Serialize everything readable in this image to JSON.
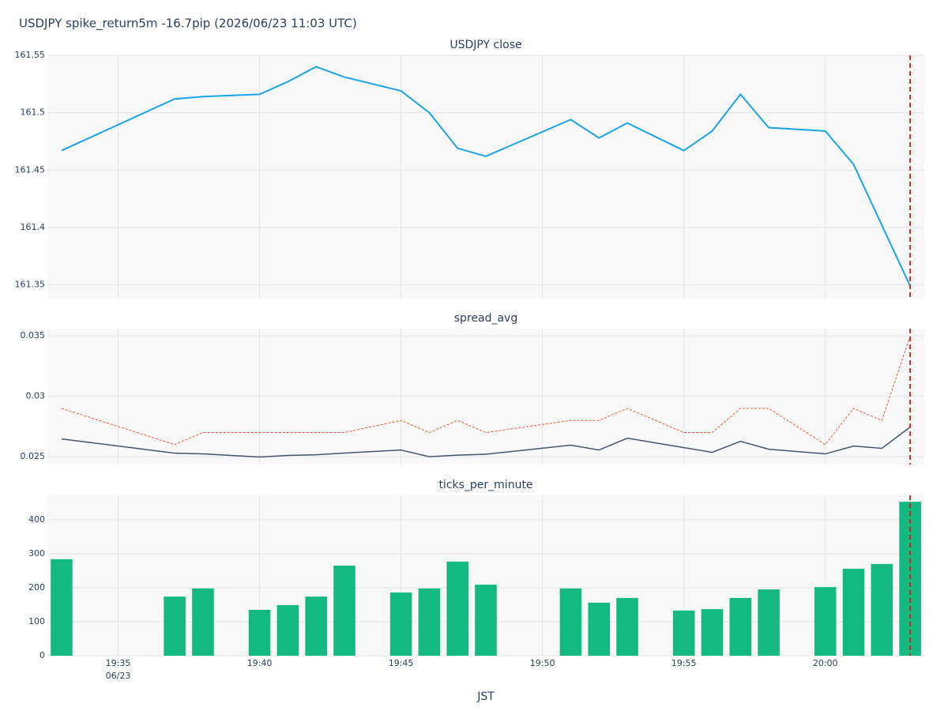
{
  "title": "USDJPY spike_return5m -16.7pip (2026/06/23 11:03 UTC)",
  "event_x": "20:03",
  "chart_data": [
    {
      "type": "line",
      "title": "USDJPY close",
      "x": [
        "19:33",
        "19:37",
        "19:38",
        "19:40",
        "19:41",
        "19:42",
        "19:43",
        "19:45",
        "19:46",
        "19:47",
        "19:48",
        "19:51",
        "19:52",
        "19:53",
        "19:55",
        "19:56",
        "19:57",
        "19:58",
        "20:00",
        "20:01",
        "20:02",
        "20:03"
      ],
      "values": [
        161.467,
        161.512,
        161.514,
        161.516,
        161.527,
        161.54,
        161.531,
        161.519,
        161.5,
        161.469,
        161.462,
        161.494,
        161.478,
        161.491,
        161.467,
        161.484,
        161.516,
        161.487,
        161.484,
        161.455,
        161.402,
        161.349
      ],
      "color": "#1ba3e3",
      "ylim": [
        161.338,
        161.55
      ],
      "yticks": [
        161.35,
        161.4,
        161.45,
        161.5,
        161.55
      ],
      "grid": true
    },
    {
      "type": "line",
      "title": "spread_avg",
      "x": [
        "19:33",
        "19:37",
        "19:38",
        "19:40",
        "19:41",
        "19:42",
        "19:43",
        "19:45",
        "19:46",
        "19:47",
        "19:48",
        "19:51",
        "19:52",
        "19:53",
        "19:55",
        "19:56",
        "19:57",
        "19:58",
        "20:00",
        "20:01",
        "20:02",
        "20:03"
      ],
      "series": [
        {
          "color": "#46556b",
          "dash": false,
          "values": [
            0.02647,
            0.02529,
            0.02523,
            0.02497,
            0.0251,
            0.02516,
            0.0253,
            0.02555,
            0.025,
            0.02513,
            0.0252,
            0.02595,
            0.02555,
            0.02653,
            0.02575,
            0.02536,
            0.02627,
            0.02562,
            0.02523,
            0.02588,
            0.02569,
            0.02745
          ]
        },
        {
          "color": "#ef553b",
          "dash": true,
          "values": [
            0.029,
            0.026,
            0.027,
            0.027,
            0.027,
            0.027,
            0.027,
            0.028,
            0.027,
            0.028,
            0.027,
            0.028,
            0.028,
            0.029,
            0.027,
            0.027,
            0.029,
            0.029,
            0.026,
            0.029,
            0.028,
            0.035
          ]
        }
      ],
      "ylim": [
        0.02435,
        0.0356
      ],
      "yticks": [
        0.025,
        0.03,
        0.035
      ],
      "grid": true
    },
    {
      "type": "bar",
      "title": "ticks_per_minute",
      "x": [
        "19:33",
        "19:37",
        "19:38",
        "19:40",
        "19:41",
        "19:42",
        "19:43",
        "19:45",
        "19:46",
        "19:47",
        "19:48",
        "19:51",
        "19:52",
        "19:53",
        "19:55",
        "19:56",
        "19:57",
        "19:58",
        "20:00",
        "20:01",
        "20:02",
        "20:03"
      ],
      "values": [
        284,
        174,
        198,
        135,
        149,
        174,
        265,
        186,
        198,
        277,
        209,
        198,
        156,
        170,
        133,
        137,
        170,
        195,
        202,
        256,
        270,
        453
      ],
      "color": "#13b981",
      "ylim": [
        0,
        472
      ],
      "yticks": [
        0,
        100,
        200,
        300,
        400
      ],
      "grid": true,
      "xticks": [
        "19:35",
        "19:40",
        "19:45",
        "19:50",
        "19:55",
        "20:00"
      ],
      "xdate": "06/23",
      "xlabel": "JST"
    }
  ]
}
